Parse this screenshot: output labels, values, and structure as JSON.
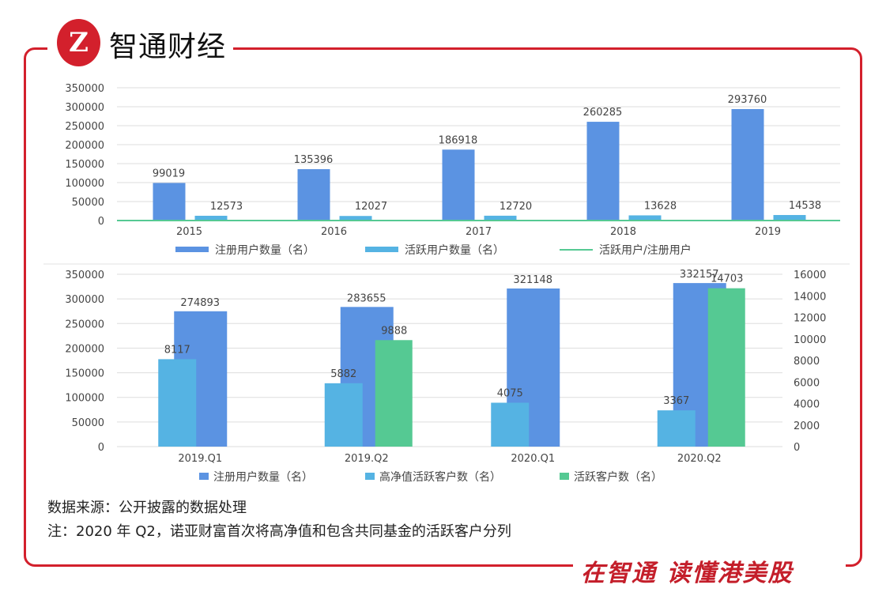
{
  "header": {
    "brand": "智通财经",
    "logo_text": "Z"
  },
  "footer": {
    "slogan": "在智通 读懂港美股"
  },
  "notes": {
    "source": "数据来源：公开披露的数据处理",
    "note": "注：2020 年 Q2，诺亚财富首次将高净值和包含共同基金的活跃客户分列"
  },
  "colors": {
    "frame": "#d3202c",
    "registered": "#5b93e2",
    "active": "#55b3e3",
    "ratio": "#55c993",
    "active_clients": "#55c993"
  },
  "chart_data": [
    {
      "type": "bar",
      "categories": [
        "2015",
        "2016",
        "2017",
        "2018",
        "2019"
      ],
      "ylim": [
        0,
        350000
      ],
      "yticks": [
        "0",
        "50000",
        "100000",
        "150000",
        "200000",
        "250000",
        "300000",
        "350000"
      ],
      "grid": true,
      "legend": "bottom",
      "series": [
        {
          "name": "注册用户数量（名）",
          "type": "bar",
          "values": [
            99019,
            135396,
            186918,
            260285,
            293760
          ],
          "labels": [
            "99019",
            "135396",
            "186918",
            "260285",
            "293760"
          ]
        },
        {
          "name": "活跃用户数量（名）",
          "type": "bar",
          "values": [
            12573,
            12027,
            12720,
            13628,
            14538
          ],
          "labels": [
            "12573",
            "12027",
            "12720",
            "13628",
            "14538"
          ]
        },
        {
          "name": "活跃用户/注册用户",
          "type": "line",
          "values": [
            0.127,
            0.089,
            0.068,
            0.052,
            0.049
          ]
        }
      ]
    },
    {
      "type": "bar",
      "categories": [
        "2019.Q1",
        "2019.Q2",
        "2020.Q1",
        "2020.Q2"
      ],
      "ylim": [
        0,
        350000
      ],
      "yticks": [
        "0",
        "50000",
        "100000",
        "150000",
        "200000",
        "250000",
        "300000",
        "350000"
      ],
      "y2lim": [
        0,
        16000
      ],
      "y2ticks": [
        "0",
        "2000",
        "4000",
        "6000",
        "8000",
        "10000",
        "12000",
        "14000",
        "16000"
      ],
      "grid": true,
      "legend": "bottom",
      "series": [
        {
          "name": "注册用户数量（名）",
          "axis": "left",
          "values": [
            274893,
            283655,
            321148,
            332157
          ],
          "labels": [
            "274893",
            "283655",
            "321148",
            "332157"
          ]
        },
        {
          "name": "高净值活跃客户数（名）",
          "axis": "right",
          "values": [
            8117,
            5882,
            4075,
            3367
          ],
          "labels": [
            "8117",
            "5882",
            "4075",
            "3367"
          ]
        },
        {
          "name": "活跃客户数（名）",
          "axis": "right",
          "values": [
            null,
            9888,
            null,
            14703
          ],
          "labels": [
            "",
            "9888",
            "",
            "14703"
          ]
        }
      ]
    }
  ]
}
